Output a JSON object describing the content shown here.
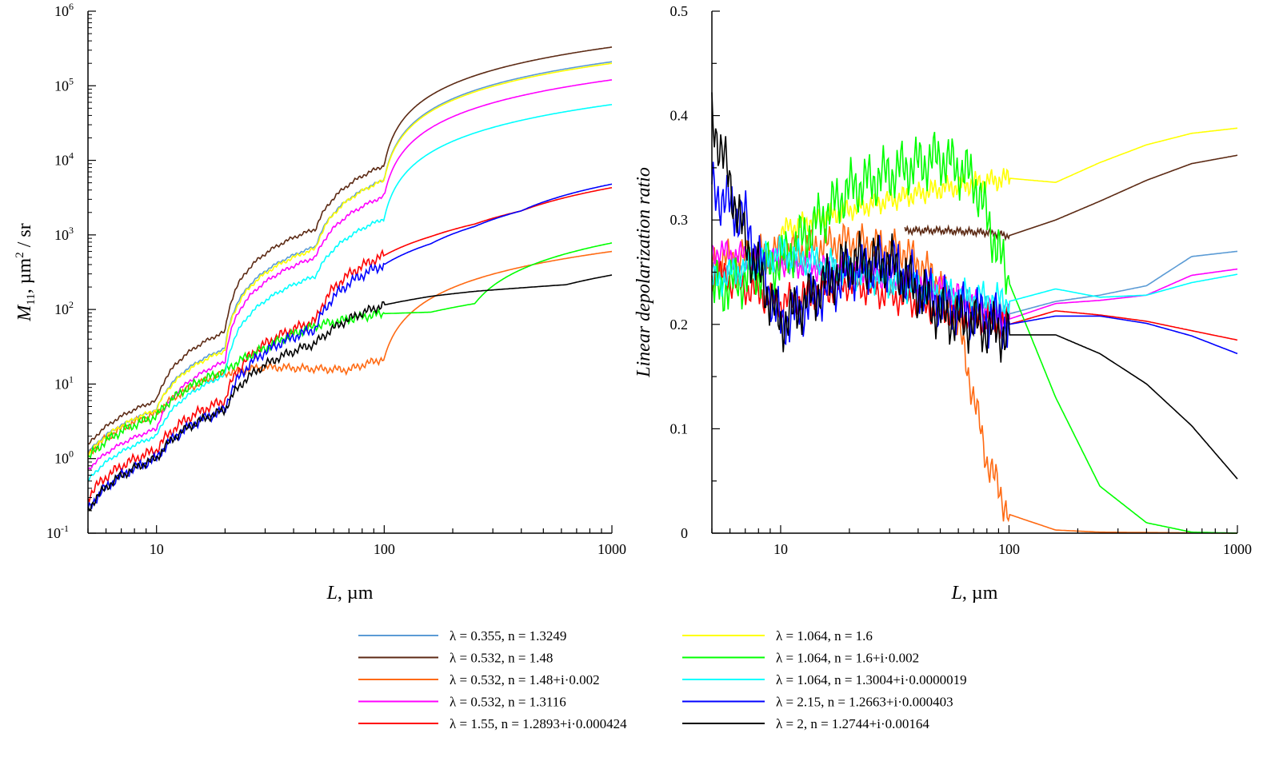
{
  "chart_data": [
    {
      "type": "line",
      "xlabel": "L, µm",
      "ylabel": "M11, µm² / sr",
      "xscale": "log",
      "yscale": "log",
      "xlim": [
        5,
        1000
      ],
      "ylim": [
        0.1,
        1000000
      ],
      "x_ticks": [
        "10",
        "100",
        "1000"
      ],
      "y_ticks": [
        {
          "base": "10",
          "exp": "-1"
        },
        {
          "base": "10",
          "exp": "0"
        },
        {
          "base": "10",
          "exp": "1"
        },
        {
          "base": "10",
          "exp": "2"
        },
        {
          "base": "10",
          "exp": "3"
        },
        {
          "base": "10",
          "exp": "4"
        },
        {
          "base": "10",
          "exp": "5"
        },
        {
          "base": "10",
          "exp": "6"
        }
      ],
      "grid": false,
      "series": [
        {
          "name": "λ = 0.355, n = 1.3249",
          "color": "#5b9bd5",
          "noise": 0.02,
          "points": [
            [
              5,
              1.2
            ],
            [
              10,
              4.5
            ],
            [
              20,
              30
            ],
            [
              50,
              700
            ],
            [
              100,
              5500
            ],
            [
              1000,
              210000
            ]
          ]
        },
        {
          "name": "λ = 0.532, n = 1.48",
          "color": "#5c2a14",
          "noise": 0.03,
          "points": [
            [
              5,
              1.5
            ],
            [
              10,
              6
            ],
            [
              20,
              50
            ],
            [
              50,
              1200
            ],
            [
              100,
              8500
            ],
            [
              1000,
              330000
            ]
          ]
        },
        {
          "name": "λ = 0.532, n = 1.48+i·0.002",
          "color": "#ff6a13",
          "noise": 0.06,
          "points": [
            [
              5,
              1.1
            ],
            [
              10,
              4
            ],
            [
              20,
              14
            ],
            [
              30,
              17
            ],
            [
              50,
              16
            ],
            [
              70,
              15.5
            ],
            [
              100,
              22
            ],
            [
              1000,
              600
            ]
          ]
        },
        {
          "name": "λ = 0.532, n = 1.3116",
          "color": "#ff00ff",
          "noise": 0.03,
          "points": [
            [
              5,
              0.7
            ],
            [
              10,
              2.5
            ],
            [
              20,
              20
            ],
            [
              50,
              500
            ],
            [
              100,
              3300
            ],
            [
              1000,
              120000
            ]
          ]
        },
        {
          "name": "λ = 1.55, n = 1.2893+i·0.000424",
          "color": "#ff0000",
          "noise": 0.08,
          "points": [
            [
              5,
              0.3
            ],
            [
              10,
              1.3
            ],
            [
              20,
              6
            ],
            [
              50,
              70
            ],
            [
              100,
              530
            ],
            [
              160,
              950
            ],
            [
              250,
              1400
            ],
            [
              400,
              2100
            ],
            [
              1000,
              4300
            ]
          ]
        },
        {
          "name": "λ = 1.064, n = 1.6",
          "color": "#ffff00",
          "noise": 0.03,
          "points": [
            [
              5,
              1.1
            ],
            [
              10,
              4.5
            ],
            [
              20,
              28
            ],
            [
              50,
              650
            ],
            [
              100,
              5400
            ],
            [
              1000,
              200000
            ]
          ]
        },
        {
          "name": "λ = 1.064, n = 1.6+i·0.002",
          "color": "#00ff00",
          "noise": 0.07,
          "points": [
            [
              5,
              1
            ],
            [
              10,
              3.7
            ],
            [
              20,
              15
            ],
            [
              30,
              30
            ],
            [
              50,
              60
            ],
            [
              80,
              80
            ],
            [
              100,
              88
            ],
            [
              160,
              92
            ],
            [
              250,
              120
            ],
            [
              1000,
              780
            ]
          ]
        },
        {
          "name": "λ = 1.064, n = 1.3004+i·0.0000019",
          "color": "#00ffff",
          "noise": 0.03,
          "points": [
            [
              5,
              0.5
            ],
            [
              10,
              2
            ],
            [
              20,
              13
            ],
            [
              50,
              280
            ],
            [
              100,
              1650
            ],
            [
              1000,
              56000
            ]
          ]
        },
        {
          "name": "λ = 2.15, n = 1.2663+i·0.000403",
          "color": "#0000ff",
          "noise": 0.08,
          "points": [
            [
              5,
              0.2
            ],
            [
              10,
              1
            ],
            [
              20,
              4.5
            ],
            [
              50,
              55
            ],
            [
              100,
              400
            ],
            [
              160,
              760
            ],
            [
              250,
              1300
            ],
            [
              400,
              2100
            ],
            [
              1000,
              4800
            ]
          ]
        },
        {
          "name": "λ = 2, n = 1.2744+i·0.00164",
          "color": "#000000",
          "noise": 0.07,
          "points": [
            [
              5,
              0.2
            ],
            [
              10,
              1
            ],
            [
              20,
              4.5
            ],
            [
              50,
              35
            ],
            [
              100,
              115
            ],
            [
              160,
              150
            ],
            [
              250,
              175
            ],
            [
              400,
              195
            ],
            [
              630,
              215
            ],
            [
              1000,
              290
            ]
          ]
        }
      ]
    },
    {
      "type": "line",
      "xlabel": "L, µm",
      "ylabel": "Linear depolarization ratio",
      "xscale": "log",
      "yscale": "linear",
      "xlim": [
        5,
        1000
      ],
      "ylim": [
        0,
        0.5
      ],
      "x_ticks": [
        "10",
        "100",
        "1000"
      ],
      "y_ticks": [
        "0",
        "0.1",
        "0.2",
        "0.3",
        "0.4",
        "0.5"
      ],
      "grid": false,
      "series": [
        {
          "name": "λ = 0.355, n = 1.3249",
          "color": "#5b9bd5",
          "noise": 0.012,
          "points": [
            [
              5,
              0.25
            ],
            [
              10,
              0.26
            ],
            [
              20,
              0.25
            ],
            [
              50,
              0.23
            ],
            [
              100,
              0.21
            ],
            [
              160,
              0.222
            ],
            [
              250,
              0.228
            ],
            [
              400,
              0.237
            ],
            [
              630,
              0.265
            ],
            [
              1000,
              0.27
            ]
          ]
        },
        {
          "name": "λ = 0.532, n = 1.48",
          "color": "#5c2a14",
          "noise": 0.004,
          "points": [
            [
              35,
              0.29
            ],
            [
              50,
              0.29
            ],
            [
              80,
              0.288
            ],
            [
              100,
              0.285
            ],
            [
              160,
              0.3
            ],
            [
              250,
              0.318
            ],
            [
              400,
              0.338
            ],
            [
              630,
              0.354
            ],
            [
              1000,
              0.362
            ]
          ]
        },
        {
          "name": "λ = 0.532, n = 1.48+i·0.002",
          "color": "#ff6a13",
          "noise": 0.02,
          "points": [
            [
              5,
              0.26
            ],
            [
              10,
              0.27
            ],
            [
              20,
              0.28
            ],
            [
              35,
              0.27
            ],
            [
              50,
              0.24
            ],
            [
              60,
              0.2
            ],
            [
              70,
              0.13
            ],
            [
              80,
              0.07
            ],
            [
              100,
              0.018
            ],
            [
              160,
              0.003
            ],
            [
              250,
              0.001
            ],
            [
              1000,
              0
            ]
          ]
        },
        {
          "name": "λ = 0.532, n = 1.3116",
          "color": "#ff00ff",
          "noise": 0.015,
          "points": [
            [
              5,
              0.27
            ],
            [
              10,
              0.26
            ],
            [
              20,
              0.25
            ],
            [
              50,
              0.235
            ],
            [
              100,
              0.205
            ],
            [
              160,
              0.22
            ],
            [
              250,
              0.223
            ],
            [
              400,
              0.228
            ],
            [
              630,
              0.247
            ],
            [
              1000,
              0.253
            ]
          ]
        },
        {
          "name": "λ = 1.55, n = 1.2893+i·0.000424",
          "color": "#ff0000",
          "noise": 0.018,
          "points": [
            [
              5,
              0.25
            ],
            [
              10,
              0.22
            ],
            [
              20,
              0.24
            ],
            [
              40,
              0.22
            ],
            [
              100,
              0.2
            ],
            [
              160,
              0.213
            ],
            [
              250,
              0.209
            ],
            [
              400,
              0.203
            ],
            [
              630,
              0.194
            ],
            [
              1000,
              0.185
            ]
          ]
        },
        {
          "name": "λ = 1.064, n = 1.6",
          "color": "#ffff00",
          "noise": 0.012,
          "points": [
            [
              10,
              0.29
            ],
            [
              20,
              0.31
            ],
            [
              50,
              0.33
            ],
            [
              70,
              0.335
            ],
            [
              100,
              0.34
            ],
            [
              160,
              0.336
            ],
            [
              250,
              0.355
            ],
            [
              400,
              0.372
            ],
            [
              630,
              0.383
            ],
            [
              1000,
              0.388
            ]
          ]
        },
        {
          "name": "λ = 1.064, n = 1.6+i·0.002",
          "color": "#00ff00",
          "noise": 0.03,
          "points": [
            [
              5,
              0.23
            ],
            [
              10,
              0.26
            ],
            [
              20,
              0.33
            ],
            [
              35,
              0.35
            ],
            [
              50,
              0.36
            ],
            [
              70,
              0.34
            ],
            [
              100,
              0.24
            ],
            [
              160,
              0.13
            ],
            [
              250,
              0.045
            ],
            [
              400,
              0.01
            ],
            [
              630,
              0.001
            ],
            [
              1000,
              0
            ]
          ]
        },
        {
          "name": "λ = 1.064, n = 1.3004+i·0.0000019",
          "color": "#00ffff",
          "noise": 0.018,
          "points": [
            [
              5,
              0.24
            ],
            [
              10,
              0.27
            ],
            [
              20,
              0.25
            ],
            [
              50,
              0.23
            ],
            [
              100,
              0.222
            ],
            [
              160,
              0.234
            ],
            [
              250,
              0.226
            ],
            [
              400,
              0.228
            ],
            [
              630,
              0.24
            ],
            [
              1000,
              0.248
            ]
          ]
        },
        {
          "name": "λ = 2.15, n = 1.2663+i·0.000403",
          "color": "#0000ff",
          "noise": 0.03,
          "points": [
            [
              5,
              0.33
            ],
            [
              7,
              0.3
            ],
            [
              10,
              0.2
            ],
            [
              20,
              0.25
            ],
            [
              30,
              0.26
            ],
            [
              50,
              0.22
            ],
            [
              100,
              0.2
            ],
            [
              160,
              0.208
            ],
            [
              250,
              0.208
            ],
            [
              400,
              0.201
            ],
            [
              630,
              0.189
            ],
            [
              1000,
              0.172
            ]
          ]
        },
        {
          "name": "λ = 2, n = 1.2744+i·0.00164",
          "color": "#000000",
          "noise": 0.03,
          "points": [
            [
              5,
              0.4
            ],
            [
              7,
              0.28
            ],
            [
              10,
              0.2
            ],
            [
              20,
              0.26
            ],
            [
              30,
              0.26
            ],
            [
              50,
              0.21
            ],
            [
              100,
              0.19
            ],
            [
              160,
              0.19
            ],
            [
              250,
              0.172
            ],
            [
              400,
              0.143
            ],
            [
              630,
              0.103
            ],
            [
              1000,
              0.052
            ]
          ]
        }
      ]
    }
  ]
}
